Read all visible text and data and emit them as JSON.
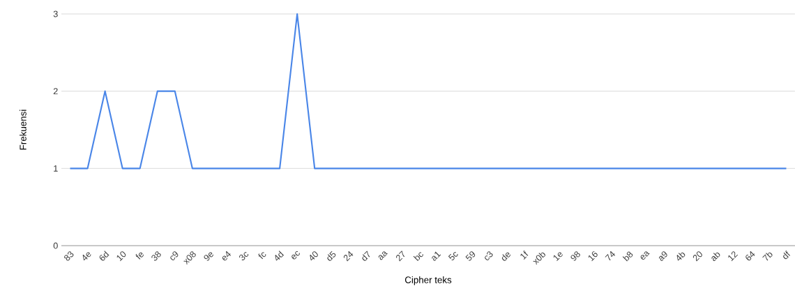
{
  "chart_data": {
    "type": "line",
    "xlabel": "Cipher teks",
    "ylabel": "Frekuensi",
    "categories": [
      "83",
      "4e",
      "6d",
      "10",
      "fe",
      "38",
      "c9",
      "x08",
      "9e",
      "e4",
      "3c",
      "fc",
      "4d",
      "ec",
      "40",
      "d5",
      "24",
      "d7",
      "aa",
      "27",
      "bc",
      "a1",
      "5c",
      "59",
      "c3",
      "de",
      "1f",
      "x0b",
      "1e",
      "98",
      "16",
      "74",
      "b8",
      "ea",
      "a9",
      "4b",
      "20",
      "ab",
      "12",
      "64",
      "7b",
      "df"
    ],
    "values": [
      1,
      1,
      2,
      1,
      1,
      2,
      2,
      1,
      1,
      1,
      1,
      1,
      1,
      3,
      1,
      1,
      1,
      1,
      1,
      1,
      1,
      1,
      1,
      1,
      1,
      1,
      1,
      1,
      1,
      1,
      1,
      1,
      1,
      1,
      1,
      1,
      1,
      1,
      1,
      1,
      1,
      1
    ],
    "color": "#4a86e8",
    "ylim": [
      0,
      3
    ],
    "yticks": [
      0,
      1,
      2,
      3
    ],
    "grid": "y"
  }
}
